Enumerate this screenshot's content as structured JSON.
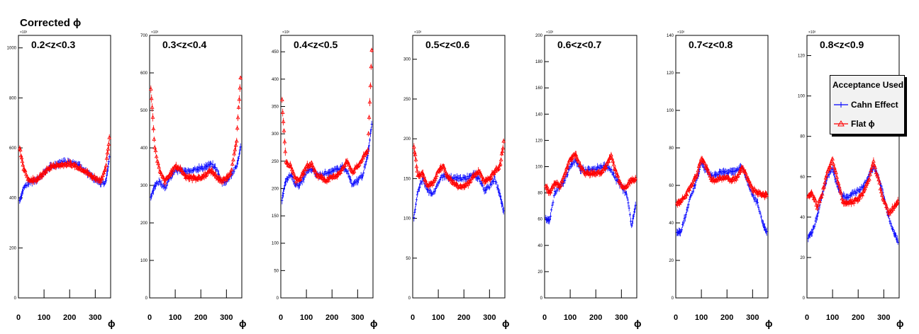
{
  "title": "Corrected ϕ",
  "legend": {
    "title": "Acceptance Used",
    "entries": [
      {
        "label": "Cahn Effect",
        "color": "#0000ff",
        "marker": "line"
      },
      {
        "label": "Flat ϕ",
        "color": "#ff0000",
        "marker": "triangle"
      }
    ]
  },
  "chart_data": [
    {
      "type": "scatter",
      "title": "0.2<z<0.3",
      "xlabel": "ϕ",
      "ylabel": "",
      "y_multiplier": "×10³",
      "xlim": [
        0,
        360
      ],
      "ylim": [
        0,
        1050
      ],
      "xticks": [
        0,
        100,
        200,
        300
      ],
      "yticks": [
        0,
        200,
        400,
        600,
        800,
        1000
      ],
      "x": [
        5,
        20,
        40,
        60,
        80,
        100,
        120,
        140,
        160,
        180,
        200,
        220,
        240,
        260,
        280,
        300,
        320,
        340,
        355
      ],
      "series": [
        {
          "name": "Cahn Effect",
          "values": [
            390,
            440,
            460,
            470,
            480,
            500,
            520,
            530,
            540,
            545,
            545,
            540,
            530,
            510,
            490,
            470,
            460,
            460,
            560
          ]
        },
        {
          "name": "Flat ϕ",
          "values": [
            600,
            520,
            470,
            470,
            480,
            500,
            520,
            530,
            530,
            535,
            535,
            530,
            520,
            510,
            490,
            480,
            470,
            510,
            640
          ]
        }
      ]
    },
    {
      "type": "scatter",
      "title": "0.3<z<0.4",
      "xlabel": "ϕ",
      "ylabel": "",
      "y_multiplier": "×10³",
      "xlim": [
        0,
        360
      ],
      "ylim": [
        0,
        700
      ],
      "xticks": [
        0,
        100,
        200,
        300
      ],
      "yticks": [
        0,
        100,
        200,
        300,
        400,
        500,
        600,
        700
      ],
      "x": [
        5,
        20,
        40,
        60,
        80,
        100,
        120,
        140,
        160,
        180,
        200,
        220,
        240,
        260,
        280,
        300,
        320,
        340,
        355
      ],
      "series": [
        {
          "name": "Cahn Effect",
          "values": [
            270,
            300,
            310,
            295,
            320,
            340,
            340,
            335,
            340,
            345,
            345,
            350,
            355,
            345,
            310,
            310,
            330,
            350,
            400
          ]
        },
        {
          "name": "Flat ϕ",
          "values": [
            560,
            400,
            335,
            310,
            330,
            350,
            345,
            325,
            320,
            320,
            320,
            330,
            340,
            325,
            310,
            320,
            340,
            420,
            590
          ]
        }
      ]
    },
    {
      "type": "scatter",
      "title": "0.4<z<0.5",
      "xlabel": "ϕ",
      "ylabel": "",
      "y_multiplier": "×10³",
      "xlim": [
        0,
        360
      ],
      "ylim": [
        0,
        480
      ],
      "xticks": [
        0,
        100,
        200,
        300
      ],
      "yticks": [
        0,
        50,
        100,
        150,
        200,
        250,
        300,
        350,
        400,
        450
      ],
      "x": [
        5,
        20,
        40,
        60,
        80,
        100,
        120,
        140,
        160,
        180,
        200,
        220,
        240,
        260,
        280,
        300,
        320,
        340,
        355
      ],
      "series": [
        {
          "name": "Cahn Effect",
          "values": [
            180,
            215,
            225,
            205,
            210,
            230,
            235,
            225,
            225,
            230,
            230,
            235,
            240,
            230,
            205,
            215,
            225,
            260,
            320
          ]
        },
        {
          "name": "Flat ϕ",
          "values": [
            360,
            250,
            240,
            215,
            220,
            240,
            245,
            225,
            220,
            215,
            220,
            225,
            235,
            250,
            230,
            240,
            255,
            270,
            450
          ]
        }
      ]
    },
    {
      "type": "scatter",
      "title": "0.5<z<0.6",
      "xlabel": "ϕ",
      "ylabel": "",
      "y_multiplier": "×10³",
      "xlim": [
        0,
        360
      ],
      "ylim": [
        0,
        330
      ],
      "xticks": [
        0,
        100,
        200,
        300
      ],
      "yticks": [
        0,
        50,
        100,
        150,
        200,
        250,
        300
      ],
      "x": [
        5,
        20,
        40,
        60,
        80,
        100,
        120,
        140,
        160,
        180,
        200,
        220,
        240,
        260,
        280,
        300,
        320,
        340,
        355
      ],
      "series": [
        {
          "name": "Cahn Effect",
          "values": [
            100,
            135,
            150,
            135,
            130,
            145,
            155,
            150,
            150,
            150,
            150,
            152,
            155,
            150,
            135,
            140,
            150,
            130,
            110
          ]
        },
        {
          "name": "Flat ϕ",
          "values": [
            190,
            155,
            155,
            140,
            145,
            160,
            165,
            150,
            145,
            140,
            140,
            145,
            155,
            160,
            145,
            150,
            160,
            165,
            195
          ]
        }
      ]
    },
    {
      "type": "scatter",
      "title": "0.6<z<0.7",
      "xlabel": "ϕ",
      "ylabel": "",
      "y_multiplier": "×10³",
      "xlim": [
        0,
        360
      ],
      "ylim": [
        0,
        200
      ],
      "xticks": [
        0,
        100,
        200,
        300
      ],
      "yticks": [
        0,
        20,
        40,
        60,
        80,
        100,
        120,
        140,
        160,
        180,
        200
      ],
      "x": [
        5,
        20,
        40,
        60,
        80,
        100,
        120,
        140,
        160,
        180,
        200,
        220,
        240,
        260,
        280,
        300,
        320,
        340,
        355
      ],
      "series": [
        {
          "name": "Cahn Effect",
          "values": [
            60,
            60,
            80,
            85,
            90,
            100,
            105,
            98,
            97,
            97,
            98,
            100,
            100,
            98,
            90,
            85,
            80,
            55,
            70
          ]
        },
        {
          "name": "Flat ϕ",
          "values": [
            85,
            80,
            88,
            85,
            95,
            105,
            110,
            100,
            95,
            95,
            95,
            96,
            100,
            108,
            95,
            85,
            85,
            90,
            90
          ]
        }
      ]
    },
    {
      "type": "scatter",
      "title": "0.7<z<0.8",
      "xlabel": "ϕ",
      "ylabel": "",
      "y_multiplier": "×10³",
      "xlim": [
        0,
        360
      ],
      "ylim": [
        0,
        140
      ],
      "xticks": [
        0,
        100,
        200,
        300
      ],
      "yticks": [
        0,
        20,
        40,
        60,
        80,
        100,
        120,
        140
      ],
      "x": [
        5,
        20,
        40,
        60,
        80,
        100,
        120,
        140,
        160,
        180,
        200,
        220,
        240,
        260,
        280,
        300,
        320,
        340,
        355
      ],
      "series": [
        {
          "name": "Cahn Effect",
          "values": [
            35,
            35,
            45,
            55,
            62,
            72,
            68,
            65,
            66,
            67,
            67,
            68,
            68,
            70,
            62,
            55,
            50,
            40,
            35
          ]
        },
        {
          "name": "Flat ϕ",
          "values": [
            50,
            52,
            55,
            60,
            65,
            74,
            70,
            63,
            63,
            64,
            64,
            63,
            64,
            70,
            64,
            58,
            56,
            55,
            55
          ]
        }
      ]
    },
    {
      "type": "scatter",
      "title": "0.8<z<0.9",
      "xlabel": "ϕ",
      "ylabel": "",
      "y_multiplier": "×10³",
      "xlim": [
        0,
        360
      ],
      "ylim": [
        0,
        130
      ],
      "xticks": [
        0,
        100,
        200,
        300
      ],
      "yticks": [
        0,
        20,
        40,
        60,
        80,
        100,
        120
      ],
      "x": [
        5,
        20,
        40,
        60,
        80,
        100,
        120,
        140,
        160,
        180,
        200,
        220,
        240,
        260,
        280,
        300,
        320,
        340,
        355
      ],
      "series": [
        {
          "name": "Cahn Effect",
          "values": [
            30,
            32,
            40,
            52,
            60,
            64,
            55,
            50,
            50,
            52,
            53,
            55,
            60,
            65,
            60,
            50,
            40,
            32,
            28
          ]
        },
        {
          "name": "Flat ϕ",
          "values": [
            50,
            52,
            45,
            52,
            62,
            68,
            58,
            48,
            47,
            48,
            49,
            52,
            58,
            67,
            58,
            48,
            42,
            45,
            48
          ]
        }
      ]
    }
  ]
}
